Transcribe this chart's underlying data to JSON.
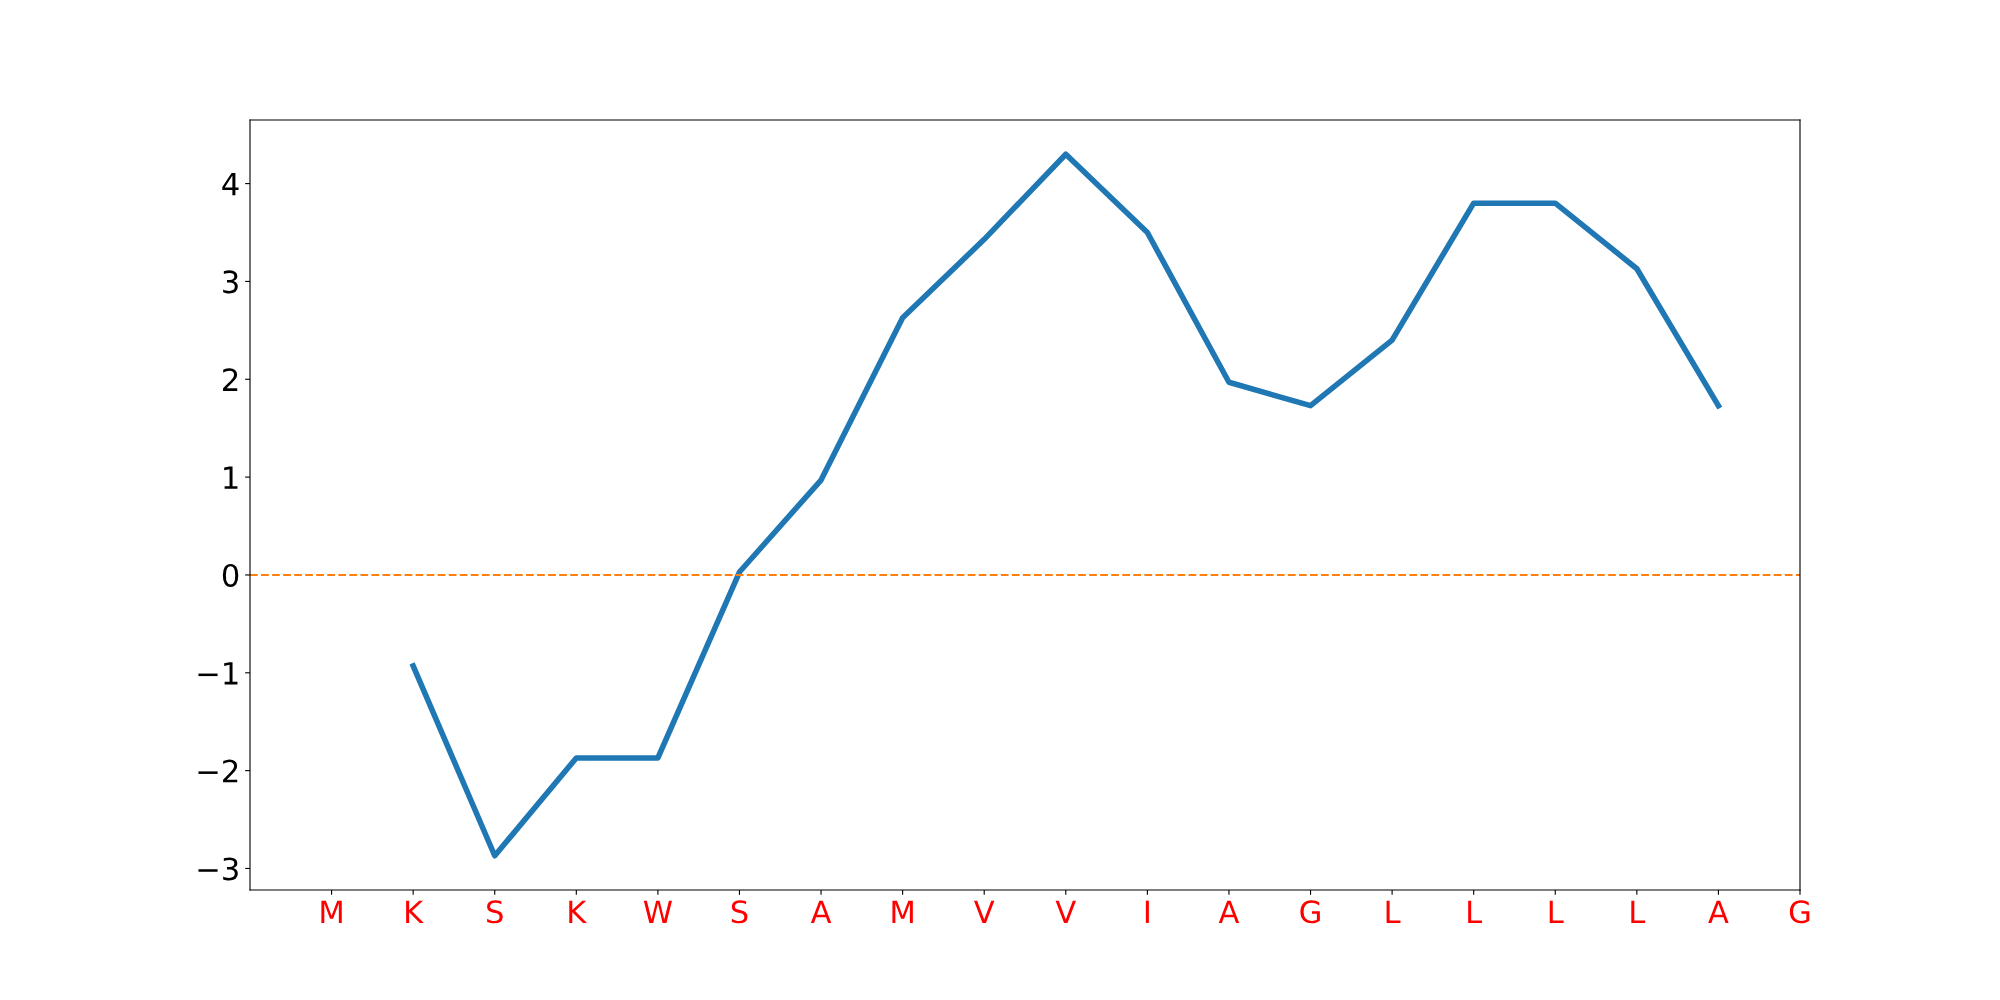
{
  "chart_data": {
    "type": "line",
    "categories": [
      "M",
      "K",
      "S",
      "K",
      "W",
      "S",
      "A",
      "M",
      "V",
      "V",
      "I",
      "A",
      "G",
      "L",
      "L",
      "L",
      "L",
      "A",
      "G"
    ],
    "series": [
      {
        "color": "#1f77b4",
        "values": [
          null,
          -0.93,
          -2.87,
          -1.87,
          -1.87,
          0.03,
          0.97,
          2.63,
          3.43,
          4.3,
          3.5,
          1.97,
          1.73,
          2.4,
          3.8,
          3.8,
          3.13,
          1.73,
          null
        ]
      }
    ],
    "ylim": [
      -3.22,
      4.65
    ],
    "yticks": [
      {
        "value": -3,
        "label": "−3"
      },
      {
        "value": -2,
        "label": "−2"
      },
      {
        "value": -1,
        "label": "−1"
      },
      0,
      1,
      2,
      3,
      4
    ],
    "ref_lines": [
      {
        "axis": "y",
        "value": 0,
        "color": "#ff7f0e",
        "line_style": "dashed"
      }
    ],
    "grid": false,
    "legend": false,
    "marker": "none",
    "line_style": "solid"
  }
}
